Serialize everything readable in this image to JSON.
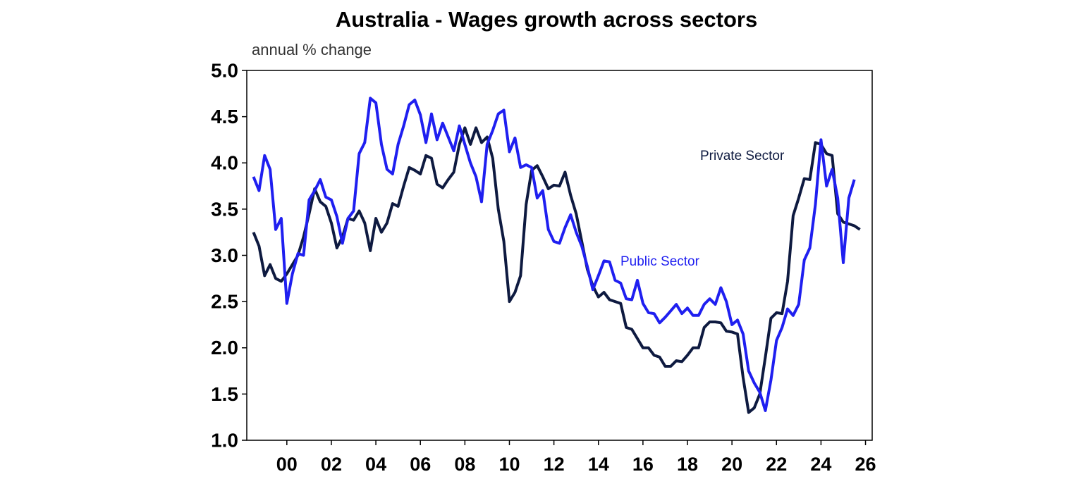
{
  "chart_data": {
    "type": "line",
    "title": "Australia - Wages growth across sectors",
    "subtitle": "annual % change",
    "x": [
      1998.5,
      1998.75,
      1999,
      1999.25,
      1999.5,
      1999.75,
      2000,
      2000.25,
      2000.5,
      2000.75,
      2001,
      2001.25,
      2001.5,
      2001.75,
      2002,
      2002.25,
      2002.5,
      2002.75,
      2003,
      2003.25,
      2003.5,
      2003.75,
      2004,
      2004.25,
      2004.5,
      2004.75,
      2005,
      2005.25,
      2005.5,
      2005.75,
      2006,
      2006.25,
      2006.5,
      2006.75,
      2007,
      2007.25,
      2007.5,
      2007.75,
      2008,
      2008.25,
      2008.5,
      2008.75,
      2009,
      2009.25,
      2009.5,
      2009.75,
      2010,
      2010.25,
      2010.5,
      2010.75,
      2011,
      2011.25,
      2011.5,
      2011.75,
      2012,
      2012.25,
      2012.5,
      2012.75,
      2013,
      2013.25,
      2013.5,
      2013.75,
      2014,
      2014.25,
      2014.5,
      2014.75,
      2015,
      2015.25,
      2015.5,
      2015.75,
      2016,
      2016.25,
      2016.5,
      2016.75,
      2017,
      2017.25,
      2017.5,
      2017.75,
      2018,
      2018.25,
      2018.5,
      2018.75,
      2019,
      2019.25,
      2019.5,
      2019.75,
      2020,
      2020.25,
      2020.5,
      2020.75,
      2021,
      2021.25,
      2021.5,
      2021.75,
      2022,
      2022.25,
      2022.5,
      2022.75,
      2023,
      2023.25,
      2023.5,
      2023.75,
      2024,
      2024.25,
      2024.5,
      2024.75,
      2025,
      2025.25,
      2025.5,
      2025.75
    ],
    "series": [
      {
        "name": "Private Sector",
        "color": "#0e1a40",
        "values": [
          3.25,
          3.1,
          2.78,
          2.9,
          2.75,
          2.72,
          2.8,
          2.9,
          3.0,
          3.2,
          3.45,
          3.72,
          3.58,
          3.53,
          3.35,
          3.08,
          3.2,
          3.4,
          3.38,
          3.48,
          3.35,
          3.05,
          3.4,
          3.25,
          3.35,
          3.56,
          3.53,
          3.75,
          3.95,
          3.92,
          3.88,
          4.08,
          4.05,
          3.77,
          3.73,
          3.82,
          3.9,
          4.2,
          4.38,
          4.2,
          4.38,
          4.22,
          4.28,
          4.05,
          3.5,
          3.15,
          2.5,
          2.6,
          2.78,
          3.55,
          3.92,
          3.97,
          3.85,
          3.72,
          3.76,
          3.75,
          3.9,
          3.65,
          3.45,
          3.15,
          2.85,
          2.67,
          2.55,
          2.6,
          2.52,
          2.5,
          2.48,
          2.22,
          2.2,
          2.1,
          2.0,
          2.0,
          1.92,
          1.9,
          1.8,
          1.8,
          1.86,
          1.85,
          1.92,
          2.0,
          2.0,
          2.22,
          2.28,
          2.28,
          2.27,
          2.18,
          2.17,
          2.15,
          1.68,
          1.3,
          1.35,
          1.5,
          1.9,
          2.32,
          2.38,
          2.37,
          2.72,
          3.43,
          3.62,
          3.83,
          3.82,
          4.22,
          4.2,
          4.1,
          4.08,
          3.45,
          3.36,
          3.34,
          3.32,
          3.28
        ]
      },
      {
        "name": "Public Sector",
        "color": "#1f1ff0",
        "values": [
          3.85,
          3.7,
          4.08,
          3.93,
          3.28,
          3.4,
          2.48,
          2.8,
          3.02,
          3.0,
          3.6,
          3.7,
          3.82,
          3.63,
          3.6,
          3.42,
          3.13,
          3.4,
          3.48,
          4.1,
          4.22,
          4.7,
          4.65,
          4.2,
          3.93,
          3.88,
          4.2,
          4.4,
          4.63,
          4.68,
          4.52,
          4.22,
          4.53,
          4.25,
          4.43,
          4.28,
          4.13,
          4.4,
          4.2,
          4.0,
          3.85,
          3.58,
          4.2,
          4.35,
          4.53,
          4.57,
          4.12,
          4.27,
          3.95,
          3.98,
          3.95,
          3.62,
          3.7,
          3.28,
          3.15,
          3.13,
          3.3,
          3.44,
          3.25,
          3.1,
          2.88,
          2.63,
          2.78,
          2.94,
          2.93,
          2.73,
          2.7,
          2.53,
          2.52,
          2.73,
          2.48,
          2.38,
          2.37,
          2.27,
          2.33,
          2.4,
          2.47,
          2.37,
          2.43,
          2.35,
          2.35,
          2.47,
          2.53,
          2.47,
          2.65,
          2.5,
          2.25,
          2.3,
          2.15,
          1.75,
          1.62,
          1.52,
          1.32,
          1.65,
          2.08,
          2.22,
          2.42,
          2.35,
          2.47,
          2.95,
          3.08,
          3.55,
          4.25,
          3.75,
          3.93,
          3.62,
          2.92,
          3.62,
          3.82,
          null
        ]
      }
    ],
    "xlim": [
      1998.2,
      2026.3
    ],
    "xticks": [
      {
        "value": 2000,
        "label": "00"
      },
      {
        "value": 2002,
        "label": "02"
      },
      {
        "value": 2004,
        "label": "04"
      },
      {
        "value": 2006,
        "label": "06"
      },
      {
        "value": 2008,
        "label": "08"
      },
      {
        "value": 2010,
        "label": "10"
      },
      {
        "value": 2012,
        "label": "12"
      },
      {
        "value": 2014,
        "label": "14"
      },
      {
        "value": 2016,
        "label": "16"
      },
      {
        "value": 2018,
        "label": "18"
      },
      {
        "value": 2020,
        "label": "20"
      },
      {
        "value": 2022,
        "label": "22"
      },
      {
        "value": 2024,
        "label": "24"
      },
      {
        "value": 2026,
        "label": "26"
      }
    ],
    "ylim": [
      1,
      5
    ],
    "yticks": [
      {
        "value": 1,
        "label": "1.0"
      },
      {
        "value": 1.5,
        "label": "1.5"
      },
      {
        "value": 2,
        "label": "2.0"
      },
      {
        "value": 2.5,
        "label": "2.5"
      },
      {
        "value": 3,
        "label": "3.0"
      },
      {
        "value": 3.5,
        "label": "3.5"
      },
      {
        "value": 4,
        "label": "4.0"
      },
      {
        "value": 4.5,
        "label": "4.5"
      },
      {
        "value": 5,
        "label": "5.0"
      }
    ],
    "grid": false
  }
}
